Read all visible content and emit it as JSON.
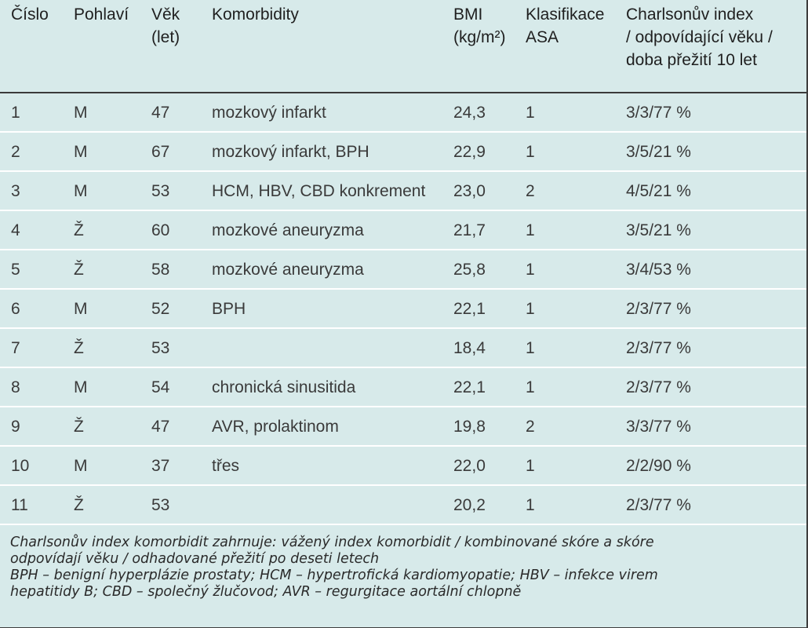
{
  "table": {
    "headers": [
      {
        "key": "cislo",
        "lines": [
          "Číslo"
        ]
      },
      {
        "key": "pohlavi",
        "lines": [
          "Pohlaví"
        ]
      },
      {
        "key": "vek",
        "lines": [
          "Věk",
          "(let)"
        ]
      },
      {
        "key": "komorbidity",
        "lines": [
          "Komorbidity"
        ]
      },
      {
        "key": "bmi",
        "lines": [
          "BMI",
          "(kg/m²)"
        ]
      },
      {
        "key": "asa",
        "lines": [
          "Klasifikace",
          "ASA"
        ]
      },
      {
        "key": "charlson",
        "lines": [
          "Charlsonův index",
          "/ odpovídající věku /",
          "doba přežití 10 let"
        ]
      }
    ],
    "rows": [
      {
        "cislo": "1",
        "pohlavi": "M",
        "vek": "47",
        "komorbidity": "mozkový infarkt",
        "bmi": "24,3",
        "asa": "1",
        "charlson": "3/3/77 %"
      },
      {
        "cislo": "2",
        "pohlavi": "M",
        "vek": "67",
        "komorbidity": "mozkový infarkt, BPH",
        "bmi": "22,9",
        "asa": "1",
        "charlson": "3/5/21 %"
      },
      {
        "cislo": "3",
        "pohlavi": "M",
        "vek": "53",
        "komorbidity": "HCM, HBV, CBD konkrement",
        "bmi": "23,0",
        "asa": "2",
        "charlson": "4/5/21 %"
      },
      {
        "cislo": "4",
        "pohlavi": "Ž",
        "vek": "60",
        "komorbidity": "mozkové aneuryzma",
        "bmi": "21,7",
        "asa": "1",
        "charlson": "3/5/21 %"
      },
      {
        "cislo": "5",
        "pohlavi": "Ž",
        "vek": "58",
        "komorbidity": "mozkové aneuryzma",
        "bmi": "25,8",
        "asa": "1",
        "charlson": "3/4/53 %"
      },
      {
        "cislo": "6",
        "pohlavi": "M",
        "vek": "52",
        "komorbidity": "BPH",
        "bmi": "22,1",
        "asa": "1",
        "charlson": "2/3/77 %"
      },
      {
        "cislo": "7",
        "pohlavi": "Ž",
        "vek": "53",
        "komorbidity": "",
        "bmi": "18,4",
        "asa": "1",
        "charlson": "2/3/77 %"
      },
      {
        "cislo": "8",
        "pohlavi": "M",
        "vek": "54",
        "komorbidity": "chronická sinusitida",
        "bmi": "22,1",
        "asa": "1",
        "charlson": "2/3/77 %"
      },
      {
        "cislo": "9",
        "pohlavi": "Ž",
        "vek": "47",
        "komorbidity": "AVR, prolaktinom",
        "bmi": "19,8",
        "asa": "2",
        "charlson": "3/3/77 %"
      },
      {
        "cislo": "10",
        "pohlavi": "M",
        "vek": "37",
        "komorbidity": "třes",
        "bmi": "22,0",
        "asa": "1",
        "charlson": "2/2/90 %"
      },
      {
        "cislo": "11",
        "pohlavi": "Ž",
        "vek": "53",
        "komorbidity": "",
        "bmi": "20,2",
        "asa": "1",
        "charlson": "2/3/77 %"
      }
    ]
  },
  "footnotes": [
    "Charlsonův index komorbidit zahrnuje: vážený index komorbidit / kombinované skóre a skóre",
    "odpovídají věku / odhadované přežití po deseti letech",
    "BPH – benigní hyperplázie prostaty; HCM – hypertrofická kardiomyopatie; HBV – infekce virem",
    "hepatitidy B; CBD – společný žlučovod; AVR – regurgitace aortální chlopně"
  ],
  "colors": {
    "background": "#d7eaea",
    "row_separator": "#ffffff",
    "rule": "#3a3a3a"
  }
}
